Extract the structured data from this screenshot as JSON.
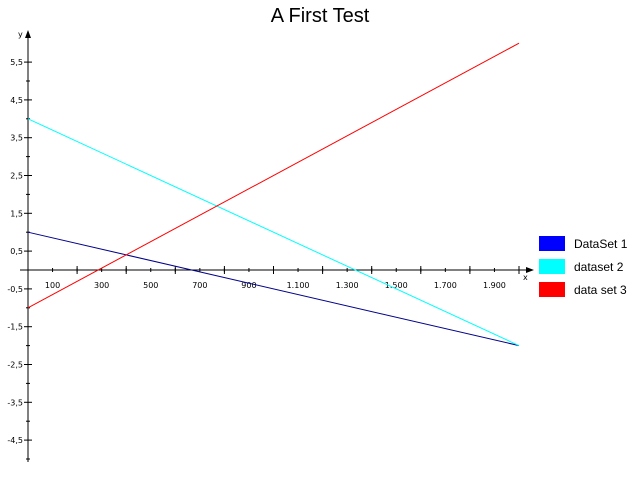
{
  "chart_data": {
    "type": "line",
    "title": "A First Test",
    "xlabel": "x",
    "ylabel": "y",
    "xlim": [
      -150,
      2100
    ],
    "ylim": [
      -5.2,
      6.3
    ],
    "grid": false,
    "legend_position": "right",
    "x_ticks": [
      -100,
      100,
      300,
      500,
      700,
      900,
      1100,
      1300,
      1500,
      1700,
      1900
    ],
    "x_tick_labels": [
      "100",
      "300",
      "500",
      "700",
      "900",
      "1.100",
      "1.300",
      "1.500",
      "1.700",
      "1.900"
    ],
    "x_tick_values": [
      100,
      300,
      500,
      700,
      900,
      1100,
      1300,
      1500,
      1700,
      1900
    ],
    "y_tick_values": [
      5.5,
      4.5,
      3.5,
      2.5,
      1.5,
      0.5,
      -0.5,
      -1.5,
      -2.5,
      -3.5,
      -4.5
    ],
    "y_tick_labels": [
      "5,5",
      "4,5",
      "3,5",
      "2,5",
      "1,5",
      "0,5",
      "-0,5",
      "-1,5",
      "-2,5",
      "-3,5",
      "-4,5"
    ],
    "series": [
      {
        "name": "DataSet 1",
        "color": "#0000ff",
        "line_color": "#00008b",
        "x": [
          0,
          2000
        ],
        "y": [
          1,
          -2
        ]
      },
      {
        "name": "dataset 2",
        "color": "#00ffff",
        "line_color": "#00ffff",
        "x": [
          0,
          2000
        ],
        "y": [
          4,
          -2
        ]
      },
      {
        "name": "data set 3",
        "color": "#ff0000",
        "line_color": "#ff0000",
        "x": [
          0,
          2000
        ],
        "y": [
          -1,
          6
        ]
      }
    ]
  }
}
